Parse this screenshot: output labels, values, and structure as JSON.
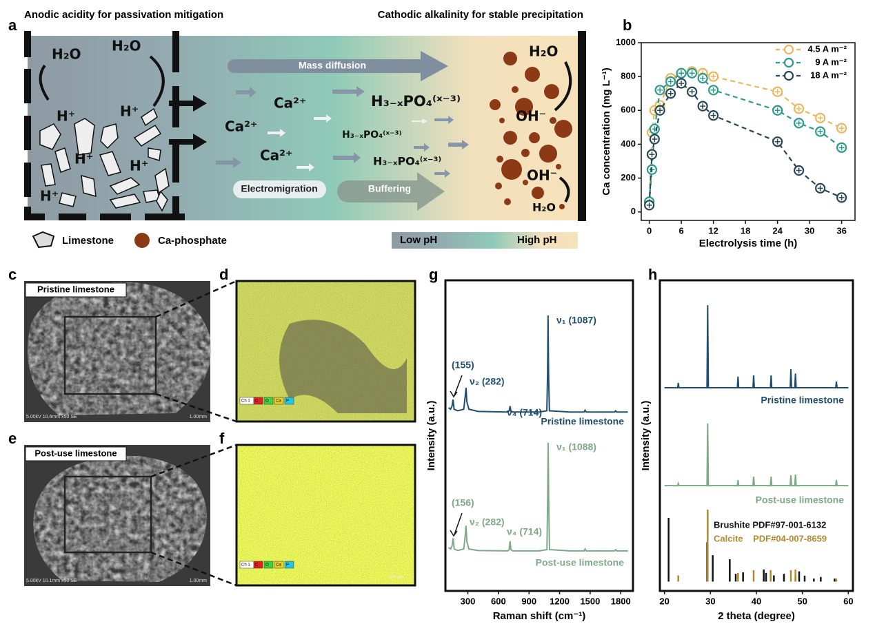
{
  "panel_labels": [
    "a",
    "b",
    "c",
    "d",
    "e",
    "f",
    "g",
    "h"
  ],
  "panel_a": {
    "left_title": "Anodic acidity for passivation mitigation",
    "right_title": "Cathodic alkalinity for stable precipitation",
    "water": [
      "H₂O",
      "H₂O",
      "H₂O",
      "H₂O"
    ],
    "protons": [
      "H⁺",
      "H⁺",
      "H⁺",
      "H⁺",
      "H⁺"
    ],
    "calcium": [
      "Ca²⁺",
      "Ca²⁺",
      "Ca²⁺"
    ],
    "phosphate": [
      "H₃₋ₓPO₄⁽ˣ⁻³⁾",
      "H₃₋ₓPO₄⁽ˣ⁻³⁾",
      "H₃₋ₓPO₄⁽ˣ⁻³⁾"
    ],
    "hydroxide": [
      "OH⁻",
      "OH⁻"
    ],
    "processes": [
      "Mass diffusion",
      "Electromigration",
      "Buffering"
    ],
    "legend": [
      "Limestone",
      "Ca-phosphate"
    ],
    "ph_bar": [
      "Low pH",
      "High pH"
    ]
  },
  "images": {
    "pristine_label": "Pristine limestone",
    "post_label": "Post-use limestone",
    "sem_info": [
      "5.00kV 10.6mm x50 SE",
      "5.00kV 10.1mm x50 SE"
    ],
    "sem_scale": [
      "1.00mm",
      "1.00mm"
    ],
    "eds_legend": [
      "Ch 1",
      "C",
      "O",
      "Ca",
      "P"
    ],
    "eds_scale": "200 μm"
  },
  "chart_data": [
    {
      "type": "line",
      "markers": true,
      "xlabel": "Electrolysis time (h)",
      "ylabel": "Ca concentration (mg L⁻¹)",
      "x": [
        0,
        0.5,
        1,
        2,
        4,
        6,
        8,
        10,
        12,
        24,
        28,
        32,
        36
      ],
      "xlim": [
        -1.5,
        38.5
      ],
      "ylim": [
        -50,
        1000
      ],
      "xticks": [
        0,
        6,
        12,
        18,
        24,
        30,
        36
      ],
      "yticks": [
        0,
        200,
        400,
        600,
        800,
        1000
      ],
      "legend": "upper right",
      "series": [
        {
          "name": "4.5 A m⁻²",
          "color": "#e9b75c",
          "values": [
            60,
            470,
            600,
            630,
            790,
            820,
            830,
            820,
            800,
            710,
            610,
            555,
            495
          ]
        },
        {
          "name": "9 A m⁻²",
          "color": "#2a9a8c",
          "values": [
            60,
            250,
            490,
            720,
            770,
            820,
            820,
            790,
            720,
            600,
            525,
            475,
            380
          ]
        },
        {
          "name": "18 A m⁻²",
          "color": "#274656",
          "values": [
            40,
            340,
            430,
            600,
            700,
            760,
            710,
            625,
            570,
            415,
            245,
            140,
            85
          ]
        }
      ]
    },
    {
      "type": "line",
      "xlabel": "Raman shift (cm⁻¹)",
      "ylabel": "Intensity (a.u.)",
      "xlim": [
        80,
        1920
      ],
      "ylim": [
        0,
        100
      ],
      "xticks": [
        300,
        600,
        900,
        1200,
        1500,
        1800
      ],
      "annotations": [
        "(155)",
        "ν₂ (282)",
        "ν₄ (714)",
        "ν₁ (1087)",
        "(156)",
        "ν₂ (282)",
        "ν₄ (714)",
        "ν₁ (1088)"
      ],
      "series": [
        {
          "name": "Pristine limestone",
          "color": "#1f4e6e",
          "x": [
            110,
            130,
            145,
            155,
            165,
            200,
            260,
            275,
            282,
            290,
            310,
            400,
            690,
            706,
            714,
            722,
            740,
            1000,
            1075,
            1082,
            1087,
            1092,
            1100,
            1300,
            1440,
            1450,
            1460,
            1740,
            1750,
            1760,
            1870
          ],
          "values": [
            59,
            58.5,
            59.5,
            61.6,
            58.5,
            58,
            58.5,
            63,
            65.4,
            61,
            58.5,
            57.8,
            57.6,
            58,
            59.5,
            58,
            57.6,
            57.6,
            58,
            70,
            88.7,
            70,
            58,
            57.6,
            57.6,
            58.2,
            57.6,
            57.6,
            58,
            57.6,
            57.6
          ]
        },
        {
          "name": "Post-use limestone",
          "color": "#7fa888",
          "x": [
            110,
            130,
            145,
            156,
            166,
            200,
            260,
            275,
            282,
            290,
            310,
            400,
            690,
            706,
            714,
            722,
            740,
            1000,
            1076,
            1083,
            1088,
            1093,
            1101,
            1300,
            1440,
            1450,
            1460,
            1740,
            1750,
            1760,
            1870
          ],
          "values": [
            14,
            13.5,
            14.5,
            17,
            13.5,
            13,
            13.5,
            18,
            21,
            16,
            13.5,
            13,
            12.9,
            13.3,
            16,
            13.3,
            12.9,
            12.9,
            13.3,
            30,
            47.7,
            30,
            13.3,
            12.9,
            12.9,
            13.5,
            12.9,
            12.9,
            13.3,
            12.9,
            12.9
          ]
        }
      ]
    },
    {
      "type": "line",
      "xlabel": "2 theta (degree)",
      "ylabel": "Intensity (a.u.)",
      "xlim": [
        19,
        61
      ],
      "ylim": [
        -3,
        97
      ],
      "xticks": [
        20,
        30,
        40,
        50,
        60
      ],
      "series": [
        {
          "name": "Pristine limestone",
          "color": "#1f4e6e",
          "x": [
            20,
            22.85,
            23,
            23.15,
            29.25,
            29.4,
            29.55,
            35.85,
            36,
            36.15,
            39.25,
            39.4,
            39.55,
            43.05,
            43.2,
            43.35,
            47.35,
            47.5,
            47.65,
            48.35,
            48.5,
            48.65,
            57.25,
            57.4,
            57.55,
            60
          ],
          "values": [
            62.4,
            62.4,
            64,
            62.4,
            62.4,
            89,
            62.4,
            62.4,
            66,
            62.4,
            62.4,
            66.4,
            62.4,
            62.4,
            66.4,
            62.4,
            62.4,
            68.4,
            62.4,
            62.4,
            67,
            62.4,
            62.4,
            64.4,
            62.4,
            62.4
          ]
        },
        {
          "name": "Post-use limestone",
          "color": "#7fa888",
          "x": [
            20,
            22.85,
            23,
            23.15,
            29.25,
            29.4,
            29.55,
            35.85,
            36,
            36.15,
            39.25,
            39.4,
            39.55,
            43.05,
            43.2,
            43.35,
            47.35,
            47.5,
            47.65,
            48.35,
            48.5,
            48.65,
            57.25,
            57.4,
            57.55,
            60
          ],
          "values": [
            30.9,
            30.9,
            31.6,
            30.9,
            30.9,
            50.9,
            30.9,
            30.9,
            32.7,
            30.9,
            30.9,
            33.8,
            30.9,
            30.9,
            33.8,
            30.9,
            30.9,
            34.2,
            30.9,
            30.9,
            34.5,
            30.9,
            30.9,
            32.7,
            30.9,
            30.9
          ]
        },
        {
          "name": "Brushite PDF#97-001-6132",
          "color": "#111111",
          "style": "stick",
          "x": [
            20.9,
            29.3,
            30.5,
            34.2,
            35.5,
            37.1,
            41.6,
            42.1,
            43.8,
            46,
            48.5,
            49.3,
            50.5,
            52.5,
            54,
            57
          ],
          "values": [
            20.5,
            12.7,
            8.5,
            7.2,
            2.5,
            3,
            3.9,
            2.8,
            2,
            2.5,
            2,
            3.3,
            1.9,
            1,
            1.5,
            1
          ]
        },
        {
          "name": "Calcite    PDF#04-007-8659",
          "color": "#b08a2e",
          "style": "stick",
          "x": [
            23,
            29.4,
            36,
            39.4,
            43.1,
            47.5,
            48.5,
            57.4
          ],
          "values": [
            2,
            23.2,
            2.8,
            3.7,
            3.7,
            3.7,
            3.9,
            1
          ]
        }
      ]
    }
  ]
}
